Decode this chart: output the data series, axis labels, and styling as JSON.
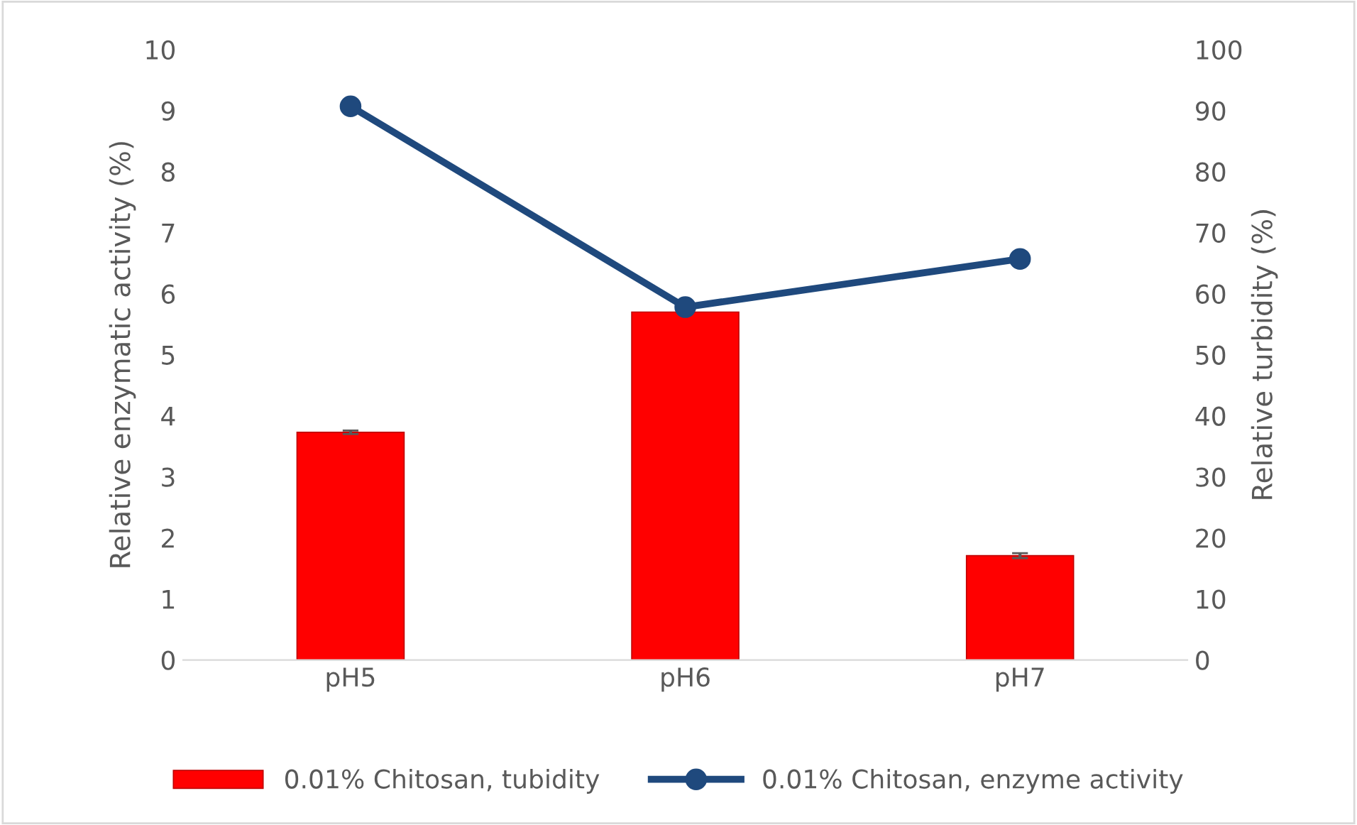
{
  "chart_data": {
    "type": "bar",
    "categories": [
      "pH5",
      "pH6",
      "pH7"
    ],
    "ylabel": "Relative enzymatic activity (%)",
    "y2label": "Relative turbidity (%)",
    "ylim": [
      0,
      10
    ],
    "yticks": [
      0,
      1,
      2,
      3,
      4,
      5,
      6,
      7,
      8,
      9,
      10
    ],
    "y2lim": [
      0,
      100
    ],
    "y2ticks": [
      0,
      10,
      20,
      30,
      40,
      50,
      60,
      70,
      80,
      90,
      100
    ],
    "series": [
      {
        "name": "0.01% Chitosan, tubidity",
        "axis": "y2",
        "color": "#ff0000",
        "values": [
          37.3,
          57.0,
          17.1
        ],
        "errors": [
          0.3,
          0.3,
          0.4
        ]
      },
      {
        "name": "0.01% Chitosan, enzyme activity",
        "type": "line",
        "axis": "y",
        "color": "#1f497d",
        "values": [
          9.07,
          5.78,
          6.57
        ],
        "marker": "circle",
        "line_style": "solid"
      }
    ],
    "grid": false,
    "legend": "bottom"
  }
}
